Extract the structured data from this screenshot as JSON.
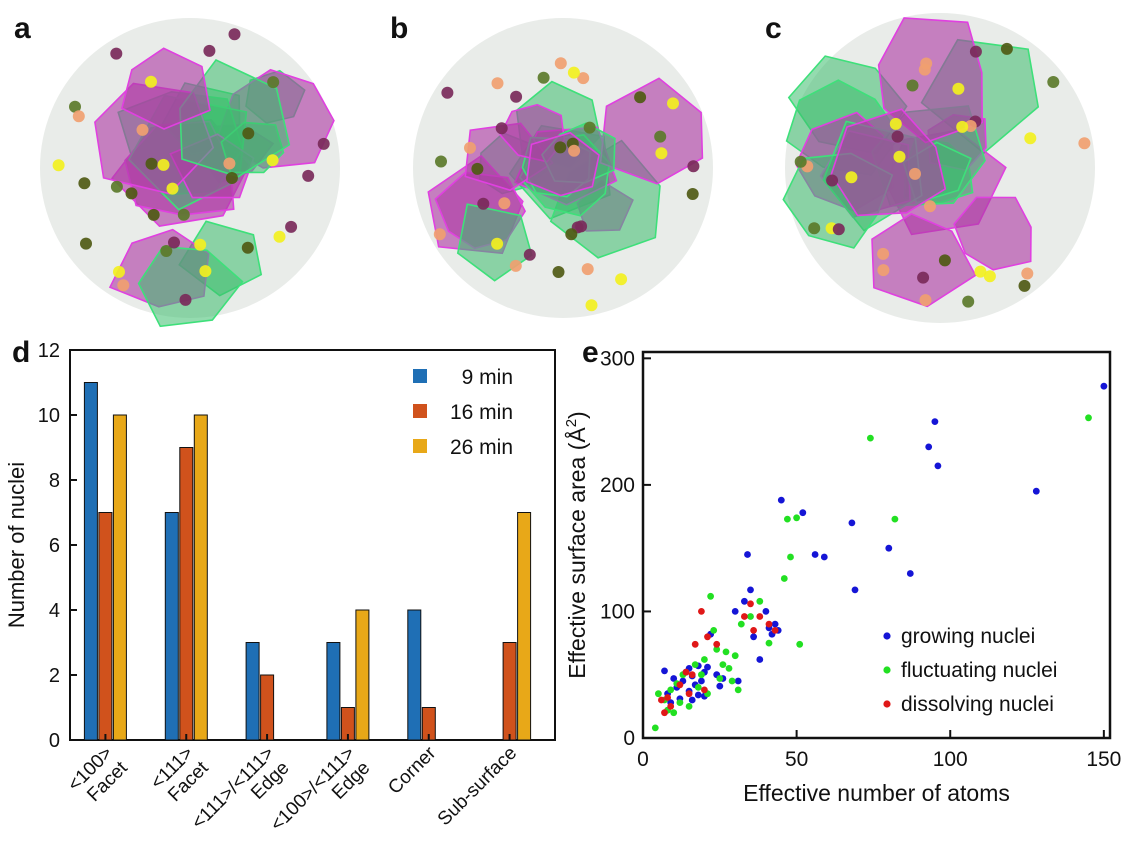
{
  "panel_labels": [
    "a",
    "b",
    "c",
    "d",
    "e"
  ],
  "chart_data": [
    {
      "type": "bar",
      "panel": "d",
      "ylabel": "Number of nuclei",
      "ylim": [
        0,
        12
      ],
      "yticks": [
        0,
        2,
        4,
        6,
        8,
        10,
        12
      ],
      "categories": [
        [
          "<100>",
          "Facet"
        ],
        [
          "<111>",
          "Facet"
        ],
        [
          "<111>/<111>",
          "Edge"
        ],
        [
          "<100>/<111>",
          "Edge"
        ],
        [
          "Corner"
        ],
        [
          "Sub-surface"
        ]
      ],
      "legend_position": "top-right",
      "series": [
        {
          "name": "9 min",
          "color": "#1f6fb5",
          "values": [
            11,
            7,
            3,
            3,
            4,
            0
          ]
        },
        {
          "name": "16 min",
          "color": "#d0521c",
          "values": [
            7,
            9,
            2,
            1,
            1,
            3
          ]
        },
        {
          "name": "26 min",
          "color": "#e8a818",
          "values": [
            10,
            10,
            0,
            4,
            0,
            7
          ]
        }
      ]
    },
    {
      "type": "scatter",
      "panel": "e",
      "xlabel": "Effective number of atoms",
      "ylabel_main": "Effective surface area (Å",
      "ylabel_sup": "2",
      "ylabel_end": ")",
      "xlim": [
        0,
        152
      ],
      "ylim": [
        0,
        305
      ],
      "xticks": [
        0,
        50,
        100,
        150
      ],
      "yticks": [
        0,
        100,
        200,
        300
      ],
      "legend_position": "bottom-right",
      "series": [
        {
          "name": "growing nuclei",
          "color": "#1515d6",
          "points": [
            [
              7,
              53
            ],
            [
              8,
              35
            ],
            [
              9,
              28
            ],
            [
              10,
              47
            ],
            [
              11,
              40
            ],
            [
              12,
              31
            ],
            [
              13,
              45
            ],
            [
              14,
              52
            ],
            [
              15,
              37
            ],
            [
              15,
              55
            ],
            [
              16,
              30
            ],
            [
              16,
              49
            ],
            [
              17,
              42
            ],
            [
              18,
              57
            ],
            [
              18,
              34
            ],
            [
              19,
              45
            ],
            [
              20,
              33
            ],
            [
              20,
              52
            ],
            [
              21,
              56
            ],
            [
              22,
              82
            ],
            [
              24,
              50
            ],
            [
              25,
              41
            ],
            [
              26,
              47
            ],
            [
              30,
              100
            ],
            [
              31,
              45
            ],
            [
              33,
              108
            ],
            [
              34,
              145
            ],
            [
              35,
              117
            ],
            [
              36,
              80
            ],
            [
              38,
              62
            ],
            [
              40,
              100
            ],
            [
              41,
              87
            ],
            [
              42,
              82
            ],
            [
              43,
              90
            ],
            [
              44,
              85
            ],
            [
              45,
              188
            ],
            [
              52,
              178
            ],
            [
              56,
              145
            ],
            [
              59,
              143
            ],
            [
              68,
              170
            ],
            [
              69,
              117
            ],
            [
              80,
              150
            ],
            [
              87,
              130
            ],
            [
              93,
              230
            ],
            [
              95,
              250
            ],
            [
              96,
              215
            ],
            [
              128,
              195
            ],
            [
              150,
              278
            ]
          ]
        },
        {
          "name": "fluctuating nuclei",
          "color": "#22e022",
          "points": [
            [
              4,
              8
            ],
            [
              5,
              35
            ],
            [
              7,
              30
            ],
            [
              8,
              22
            ],
            [
              9,
              38
            ],
            [
              10,
              20
            ],
            [
              11,
              43
            ],
            [
              12,
              28
            ],
            [
              13,
              50
            ],
            [
              15,
              25
            ],
            [
              17,
              58
            ],
            [
              18,
              40
            ],
            [
              19,
              50
            ],
            [
              20,
              62
            ],
            [
              21,
              35
            ],
            [
              22,
              112
            ],
            [
              23,
              85
            ],
            [
              24,
              70
            ],
            [
              25,
              47
            ],
            [
              26,
              58
            ],
            [
              27,
              68
            ],
            [
              28,
              55
            ],
            [
              29,
              45
            ],
            [
              30,
              65
            ],
            [
              31,
              38
            ],
            [
              32,
              90
            ],
            [
              35,
              96
            ],
            [
              38,
              108
            ],
            [
              41,
              75
            ],
            [
              46,
              126
            ],
            [
              47,
              173
            ],
            [
              48,
              143
            ],
            [
              50,
              174
            ],
            [
              51,
              74
            ],
            [
              74,
              237
            ],
            [
              82,
              173
            ],
            [
              145,
              253
            ]
          ]
        },
        {
          "name": "dissolving nuclei",
          "color": "#e01818",
          "points": [
            [
              6,
              30
            ],
            [
              7,
              20
            ],
            [
              8,
              32
            ],
            [
              9,
              25
            ],
            [
              12,
              42
            ],
            [
              14,
              52
            ],
            [
              15,
              35
            ],
            [
              16,
              50
            ],
            [
              17,
              74
            ],
            [
              19,
              100
            ],
            [
              20,
              38
            ],
            [
              21,
              80
            ],
            [
              24,
              74
            ],
            [
              33,
              96
            ],
            [
              35,
              106
            ],
            [
              36,
              85
            ],
            [
              38,
              96
            ],
            [
              41,
              90
            ],
            [
              43,
              85
            ]
          ]
        }
      ]
    }
  ]
}
